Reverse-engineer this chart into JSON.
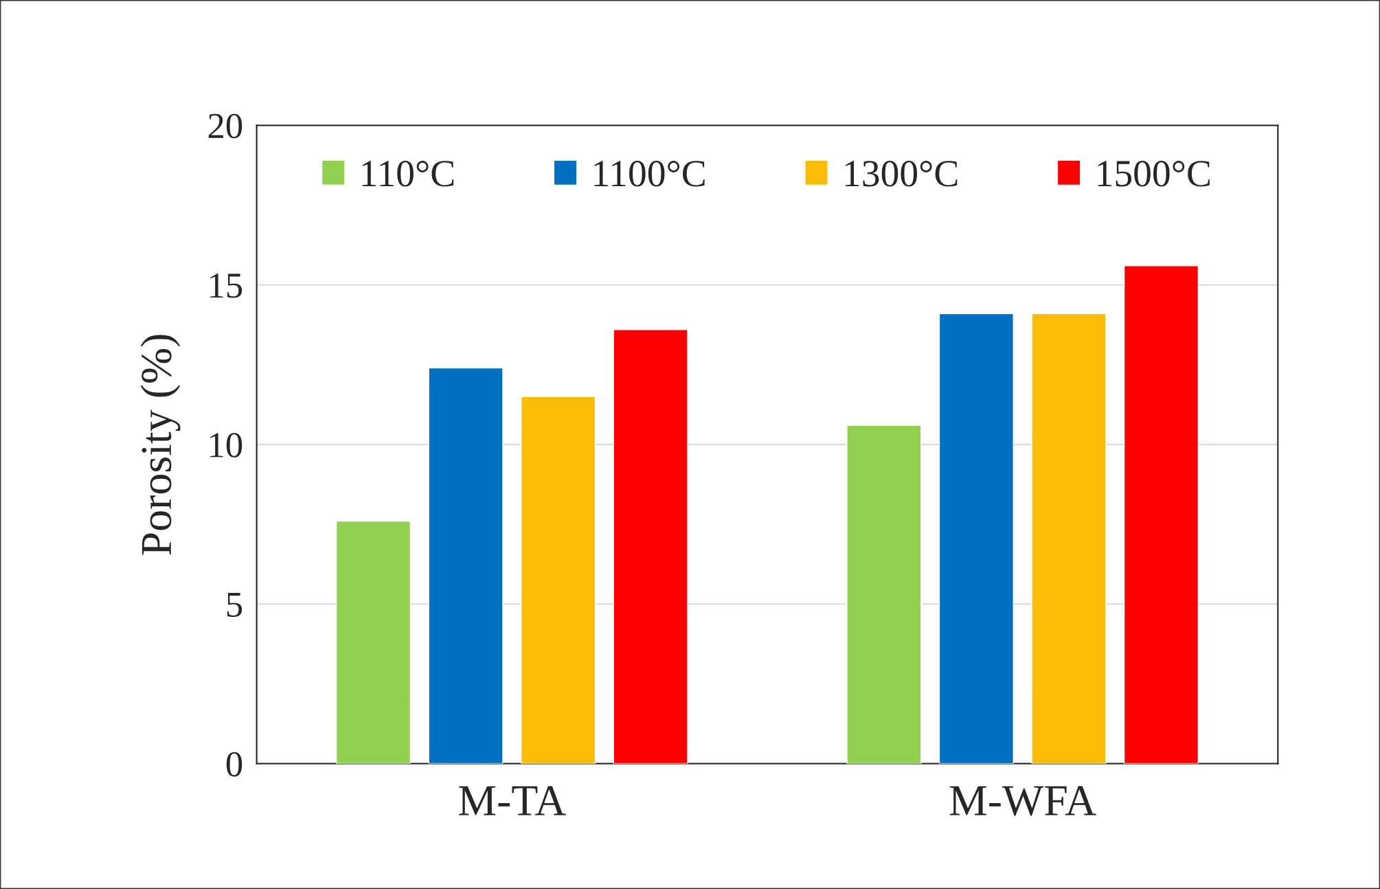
{
  "chart_data": {
    "type": "bar",
    "ylabel": "Porosity (%)",
    "categories": [
      "M-TA",
      "M-WFA"
    ],
    "series": [
      {
        "name": "110°C",
        "color": "#92d050",
        "values": [
          7.6,
          10.6
        ]
      },
      {
        "name": "1100°C",
        "color": "#0070c0",
        "values": [
          12.4,
          14.1
        ]
      },
      {
        "name": "1300°C",
        "color": "#fabd06",
        "values": [
          11.5,
          14.1
        ]
      },
      {
        "name": "1500°C",
        "color": "#ff0000",
        "values": [
          13.6,
          15.6
        ]
      }
    ],
    "ylim": [
      0,
      20
    ],
    "yticks": [
      0,
      5,
      10,
      15,
      20
    ],
    "grid": "y",
    "legend": "top"
  }
}
